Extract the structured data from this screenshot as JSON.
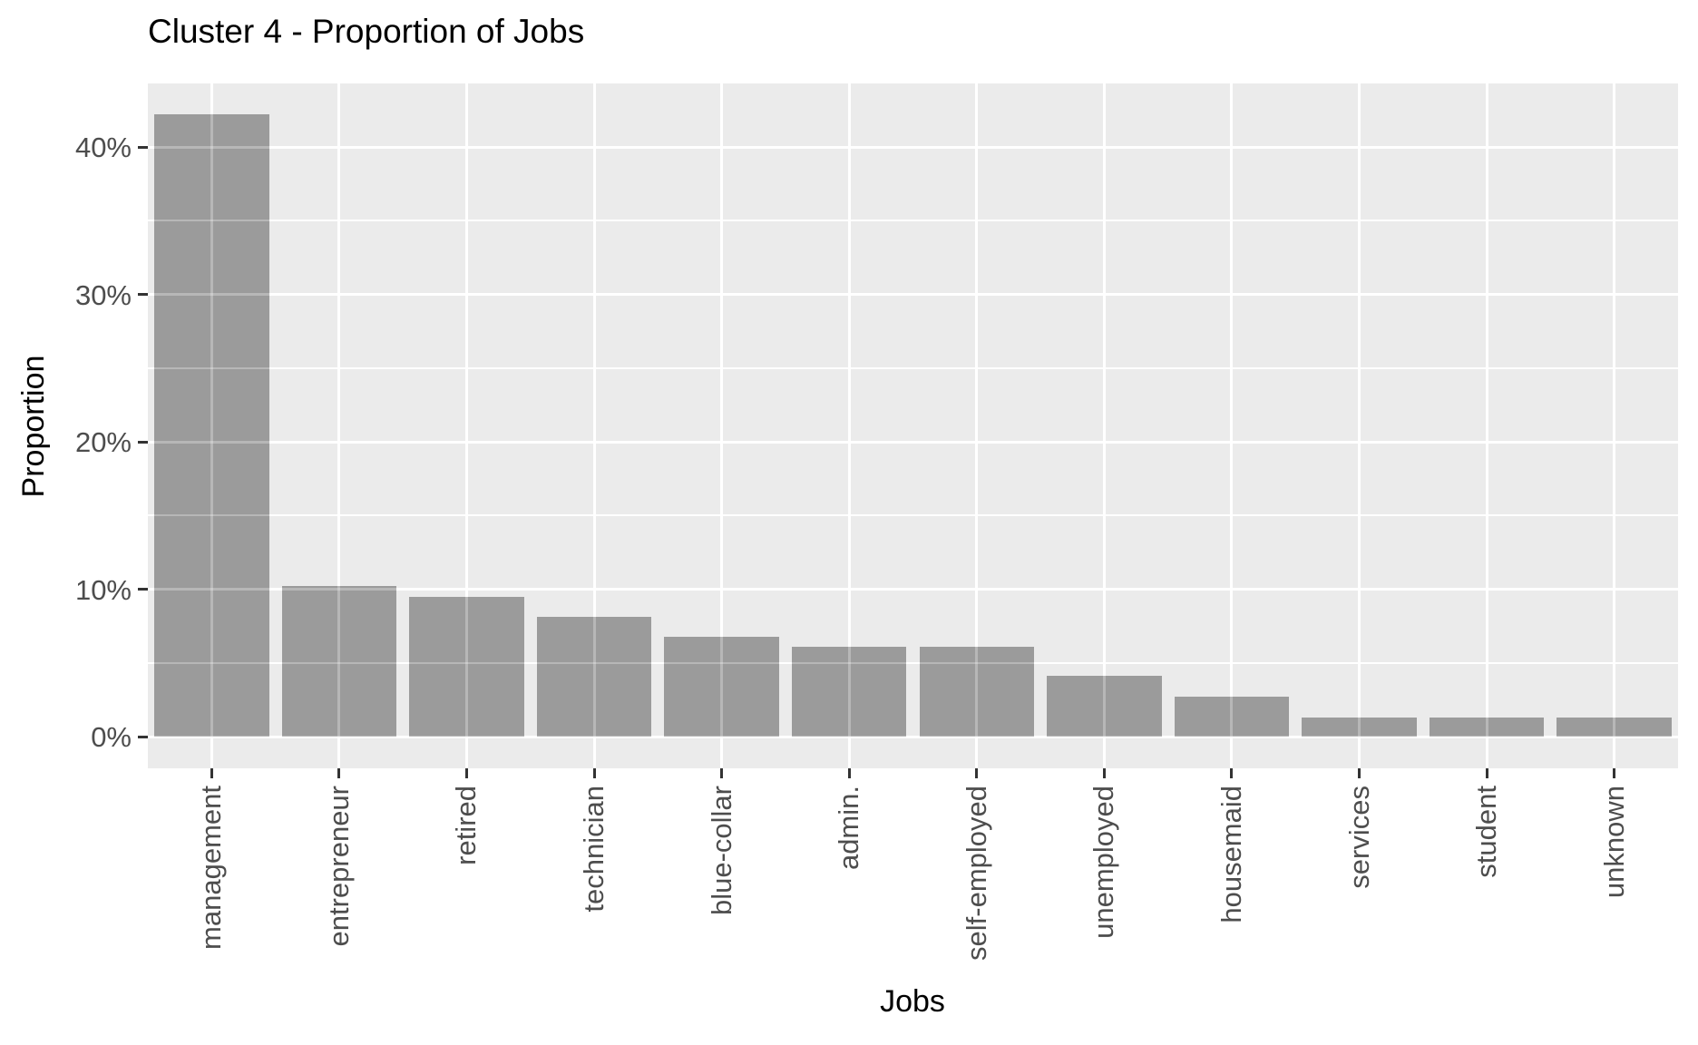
{
  "title": "Cluster 4 - Proportion of Jobs",
  "chart_data": {
    "type": "bar",
    "title": "Cluster 4 - Proportion of Jobs",
    "xlabel": "Jobs",
    "ylabel": "Proportion",
    "categories": [
      "management",
      "entrepreneur",
      "retired",
      "technician",
      "blue-collar",
      "admin.",
      "self-employed",
      "unemployed",
      "housemaid",
      "services",
      "student",
      "unknown"
    ],
    "values": [
      42.2,
      10.2,
      9.5,
      8.1,
      6.8,
      6.1,
      6.1,
      4.1,
      2.7,
      1.3,
      1.3,
      1.3
    ],
    "value_unit": "%",
    "y_ticks": [
      0,
      10,
      20,
      30,
      40
    ],
    "y_tick_labels": [
      "0%",
      "10%",
      "20%",
      "30%",
      "40%"
    ],
    "y_minor_ticks": [
      5,
      15,
      25,
      35
    ],
    "ylim": [
      -2.2,
      44.3
    ],
    "grid": "white major and minor horizontal lines, white vertical lines at category centers",
    "legend": "none",
    "bar_width_fraction": 0.9,
    "colors": {
      "bar_fill": "#9B9B9B",
      "panel_background": "#EBEBEB",
      "gridline": "#FFFFFF",
      "tick_label": "#4D4D4D",
      "axis_tick": "#333333",
      "title_text": "#000000",
      "axis_title_text": "#000000",
      "page_background": "#FFFFFF"
    }
  }
}
